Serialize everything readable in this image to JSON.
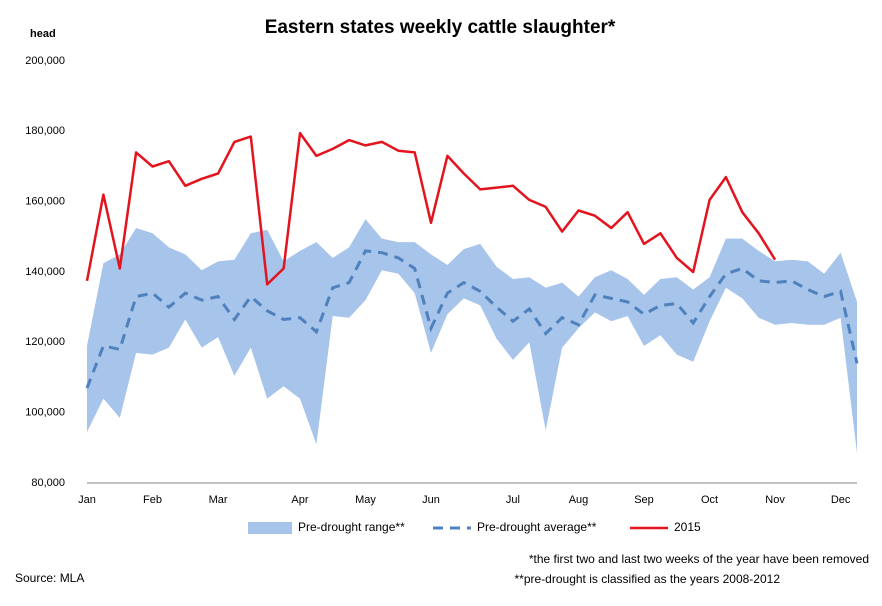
{
  "chart_data": {
    "type": "line",
    "title": "Eastern states weekly cattle slaughter*",
    "y_label": "head",
    "categories": [
      "Jan",
      null,
      null,
      null,
      "Feb",
      null,
      null,
      null,
      "Mar",
      null,
      null,
      null,
      null,
      "Apr",
      null,
      null,
      null,
      "May",
      null,
      null,
      null,
      "Jun",
      null,
      null,
      null,
      null,
      "Jul",
      null,
      null,
      null,
      "Aug",
      null,
      null,
      null,
      "Sep",
      null,
      null,
      null,
      "Oct",
      null,
      null,
      null,
      "Nov",
      null,
      null,
      null,
      "Dec",
      null
    ],
    "ylim": [
      80000,
      200000
    ],
    "yticks": [
      {
        "value": 80000,
        "label": "80,000"
      },
      {
        "value": 100000,
        "label": "100,000"
      },
      {
        "value": 120000,
        "label": "120,000"
      },
      {
        "value": 140000,
        "label": "140,000"
      },
      {
        "value": 160000,
        "label": "160,000"
      },
      {
        "value": 180000,
        "label": "180,000"
      },
      {
        "value": 200000,
        "label": "200,000"
      }
    ],
    "grid": false,
    "series": [
      {
        "name": "Pre-drought range**",
        "type": "range",
        "color": "#a7c4eb",
        "values": [
          119000,
          142500,
          145000,
          152500,
          151000,
          147000,
          145000,
          140500,
          143000,
          143500,
          151000,
          152000,
          143000,
          146000,
          148500,
          144000,
          147000,
          155000,
          149500,
          148500,
          148500,
          145000,
          142000,
          146500,
          148000,
          141500,
          138000,
          138500,
          135500,
          137000,
          133000,
          138500,
          140500,
          138000,
          133500,
          138000,
          138500,
          135000,
          138500,
          149500,
          149500,
          146000,
          143000,
          143500,
          143000,
          139500,
          145500,
          131500
        ],
        "lower": [
          94500,
          104000,
          98500,
          117000,
          116500,
          118500,
          126500,
          118500,
          121500,
          110500,
          118500,
          104000,
          107500,
          104000,
          91000,
          127500,
          127000,
          132000,
          140500,
          139500,
          134000,
          117000,
          128000,
          132500,
          130500,
          121000,
          115000,
          120000,
          95000,
          118500,
          124000,
          128500,
          126000,
          127500,
          119000,
          122000,
          116500,
          114500,
          126000,
          135500,
          132500,
          127000,
          125000,
          125500,
          125000,
          125000,
          127000,
          88500
        ]
      },
      {
        "name": "Pre-drought average**",
        "type": "dashed",
        "color": "#4f81bd",
        "values": [
          107000,
          119000,
          118000,
          133000,
          134000,
          130000,
          134000,
          132000,
          133000,
          126500,
          133000,
          129000,
          126500,
          127000,
          123000,
          135500,
          137000,
          146000,
          145500,
          144000,
          141000,
          124000,
          134000,
          137000,
          134500,
          130000,
          126000,
          129500,
          122500,
          127000,
          125000,
          133500,
          132500,
          131500,
          128000,
          130500,
          131000,
          125500,
          133000,
          139500,
          141000,
          137500,
          137000,
          137500,
          135000,
          133000,
          134500,
          114000
        ]
      },
      {
        "name": "2015",
        "type": "solid",
        "color": "#e3141d",
        "values": [
          137500,
          162000,
          141000,
          174000,
          170000,
          171500,
          164500,
          166500,
          168000,
          177000,
          178500,
          136500,
          141000,
          179500,
          173000,
          175000,
          177500,
          176000,
          177000,
          174500,
          174000,
          154000,
          173000,
          168000,
          163500,
          164000,
          164500,
          160500,
          158500,
          151500,
          157500,
          156000,
          152500,
          157000,
          148000,
          151000,
          144000,
          140000,
          160500,
          167000,
          157000,
          151000,
          143500,
          null,
          null,
          null,
          null,
          null
        ]
      }
    ],
    "notes": [
      "*the first two and last two weeks of the year have been removed",
      "**pre-drought is classified as the years 2008-2012"
    ],
    "source": "Source: MLA"
  }
}
